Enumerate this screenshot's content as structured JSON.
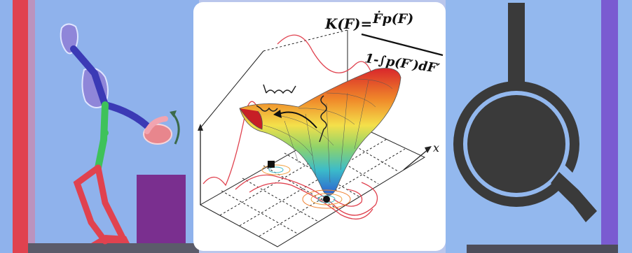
{
  "figure": {
    "formula_lhs": "K(F)=",
    "formula_numerator": "Ḟp(F)",
    "formula_denominator": "1-∫p(F′)dF′",
    "axis_label_x": "x"
  },
  "colors": {
    "left_background": "#8fb2ec",
    "frame_red": "#e0424f",
    "box_purple": "#7a2f8f",
    "right_background": "#93b8ee",
    "frame_purple": "#7a5bd1",
    "glyph_dark": "#3a3a3a",
    "glyph_ring": "#9fc3f2"
  },
  "icons": [
    "bipedal-agent-icon",
    "curved-arrow-icon",
    "energy-landscape-icon",
    "spring-icon",
    "keyhole-glyph-icon"
  ]
}
